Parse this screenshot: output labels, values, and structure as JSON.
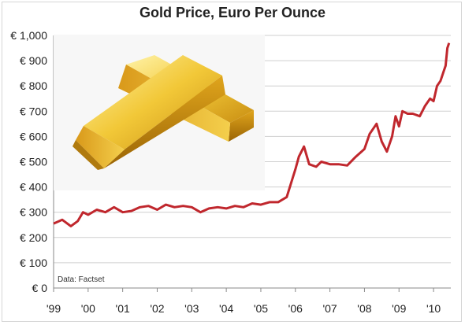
{
  "chart_data": {
    "type": "line",
    "title": "Gold Price, Euro Per Ounce",
    "xlabel": "",
    "ylabel": "",
    "source_note": "Data: Factset",
    "x_ticks": [
      "'99",
      "'00",
      "'01",
      "'02",
      "'03",
      "'04",
      "'05",
      "'06",
      "'07",
      "'08",
      "'09",
      "'10"
    ],
    "y_ticks": [
      "€ 0",
      "€ 100",
      "€ 200",
      "€ 300",
      "€ 400",
      "€ 500",
      "€ 600",
      "€ 700",
      "€ 800",
      "€ 900",
      "€ 1,000"
    ],
    "ylim": [
      0,
      1000
    ],
    "xlim": [
      1999.0,
      2010.5
    ],
    "grid": true,
    "legend": "none",
    "line_color": "#c0272d",
    "series": [
      {
        "x": [
          1999.0,
          1999.25,
          1999.5,
          1999.7,
          1999.85,
          2000.0,
          2000.25,
          2000.5,
          2000.75,
          2001.0,
          2001.25,
          2001.5,
          2001.75,
          2002.0,
          2002.25,
          2002.5,
          2002.75,
          2003.0,
          2003.25,
          2003.5,
          2003.75,
          2004.0,
          2004.25,
          2004.5,
          2004.75,
          2005.0,
          2005.25,
          2005.5,
          2005.75,
          2006.0,
          2006.1,
          2006.25,
          2006.4,
          2006.6,
          2006.75,
          2007.0,
          2007.25,
          2007.5,
          2007.75,
          2008.0,
          2008.15,
          2008.35,
          2008.5,
          2008.65,
          2008.8,
          2008.9,
          2009.0,
          2009.1,
          2009.25,
          2009.4,
          2009.6,
          2009.75,
          2009.9,
          2010.0,
          2010.1,
          2010.2,
          2010.3,
          2010.35,
          2010.4,
          2010.45
        ],
        "values": [
          255,
          270,
          245,
          265,
          300,
          290,
          310,
          300,
          320,
          300,
          305,
          320,
          325,
          310,
          330,
          320,
          325,
          320,
          300,
          315,
          320,
          315,
          325,
          320,
          335,
          330,
          340,
          340,
          360,
          470,
          520,
          560,
          490,
          480,
          500,
          490,
          490,
          485,
          520,
          550,
          610,
          650,
          580,
          540,
          600,
          680,
          640,
          700,
          690,
          690,
          680,
          720,
          750,
          740,
          800,
          820,
          860,
          880,
          950,
          970
        ]
      }
    ]
  }
}
